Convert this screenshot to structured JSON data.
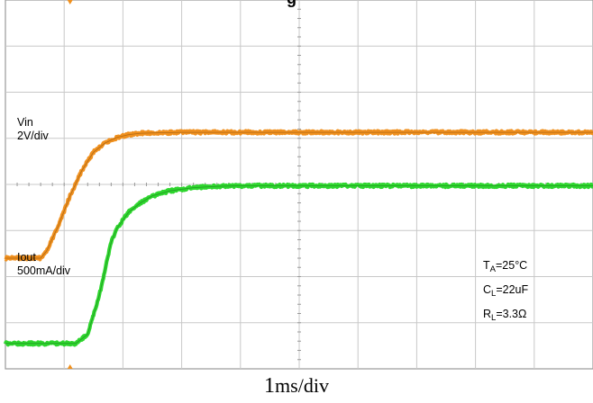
{
  "chart_data": {
    "type": "line",
    "title": "g",
    "xlabel": "1ms/div",
    "x_div": {
      "value": "1",
      "unit": "ms/div"
    },
    "grid": true,
    "divisions": {
      "x": 10,
      "y": 8
    },
    "x_range_ms": [
      0,
      10
    ],
    "series": [
      {
        "name": "Vin",
        "scale": "2V/div",
        "color": "#f0901e",
        "x": [
          0,
          0.6,
          0.7,
          0.9,
          1.1,
          1.3,
          1.5,
          1.7,
          1.9,
          2.1,
          2.3,
          2.6,
          3.0,
          4.0,
          10.0
        ],
        "y_div": [
          2.4,
          2.4,
          2.55,
          3.1,
          3.75,
          4.3,
          4.7,
          4.9,
          5.02,
          5.08,
          5.11,
          5.12,
          5.13,
          5.13,
          5.13
        ]
      },
      {
        "name": "Iout",
        "scale": "500mA/div",
        "color": "#2ed62e",
        "x": [
          0,
          1.2,
          1.4,
          1.6,
          1.8,
          1.9,
          2.1,
          2.3,
          2.5,
          2.8,
          3.2,
          3.6,
          4.0,
          5.0,
          10.0
        ],
        "y_div": [
          0.55,
          0.55,
          0.75,
          1.6,
          2.75,
          3.05,
          3.4,
          3.6,
          3.75,
          3.86,
          3.93,
          3.96,
          3.97,
          3.97,
          3.97
        ]
      }
    ]
  },
  "labels": {
    "vin_name": "Vin",
    "vin_scale": "2V/div",
    "iout_name": "Iout",
    "iout_scale": "500mA/div",
    "ta_sym": "T",
    "ta_sub": "A",
    "ta_val": "=25°C",
    "cl_sym": "C",
    "cl_sub": "L",
    "cl_val": "=22uF",
    "rl_sym": "R",
    "rl_sub": "L",
    "rl_val": "=3.3Ω",
    "x_num": "1",
    "x_unit": "ms/div"
  }
}
